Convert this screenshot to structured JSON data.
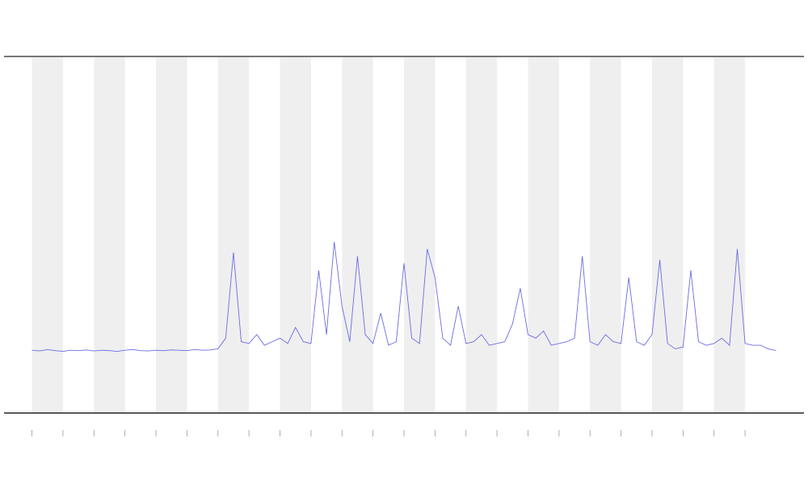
{
  "chart_data": {
    "type": "line",
    "x": [
      0,
      0.25,
      0.5,
      0.75,
      1,
      1.25,
      1.5,
      1.75,
      2,
      2.25,
      2.5,
      2.75,
      3,
      3.25,
      3.5,
      3.75,
      4,
      4.25,
      4.5,
      4.75,
      5,
      5.25,
      5.5,
      5.75,
      6,
      6.25,
      6.5,
      6.75,
      7,
      7.25,
      7.5,
      7.75,
      8,
      8.25,
      8.5,
      8.75,
      9,
      9.25,
      9.5,
      9.75,
      10,
      10.25,
      10.5,
      10.75,
      11,
      11.25,
      11.5,
      11.75,
      12,
      12.25,
      12.5,
      12.75,
      13,
      13.25,
      13.5,
      13.75,
      14,
      14.25,
      14.5,
      14.75,
      15,
      15.25,
      15.5,
      15.75,
      16,
      16.25,
      16.5,
      16.75,
      17,
      17.25,
      17.5,
      17.75,
      18,
      18.25,
      18.5,
      18.75,
      19,
      19.25,
      19.5,
      19.75,
      20,
      20.25,
      20.5,
      20.75,
      21,
      21.25,
      21.5,
      21.75,
      22,
      22.25,
      22.5,
      22.75,
      23,
      23.25,
      23.5,
      23.75,
      24
    ],
    "series": [
      {
        "color": "#6b6be6",
        "values": [
          17.6,
          17.4,
          17.8,
          17.5,
          17.3,
          17.6,
          17.5,
          17.7,
          17.4,
          17.6,
          17.5,
          17.3,
          17.6,
          17.8,
          17.5,
          17.4,
          17.6,
          17.5,
          17.7,
          17.6,
          17.5,
          17.8,
          17.6,
          17.7,
          18.0,
          21,
          45,
          20,
          19.5,
          22,
          19,
          20,
          21,
          19.5,
          24,
          20,
          19.5,
          40,
          22,
          48,
          30,
          20,
          44,
          22,
          19.5,
          28,
          19,
          20,
          42,
          21,
          19.5,
          46,
          38,
          21,
          19,
          30,
          19.5,
          20,
          22,
          19,
          19.5,
          20,
          25,
          35,
          22,
          21,
          23,
          19,
          19.5,
          20,
          21,
          44,
          20,
          19,
          22,
          20,
          19.5,
          38,
          20,
          19,
          22,
          43,
          19.5,
          18,
          18.5,
          40,
          20,
          19,
          19.5,
          21,
          19,
          46,
          19.5,
          19,
          19,
          18,
          17.5
        ]
      }
    ],
    "xlim": [
      -0.9,
      24.9
    ],
    "ylim": [
      0,
      100
    ],
    "xticks": [
      0,
      1,
      2,
      3,
      4,
      5,
      6,
      7,
      8,
      9,
      10,
      11,
      12,
      13,
      14,
      15,
      16,
      17,
      18,
      19,
      20,
      21,
      22,
      23
    ],
    "shaded_bands": true
  }
}
